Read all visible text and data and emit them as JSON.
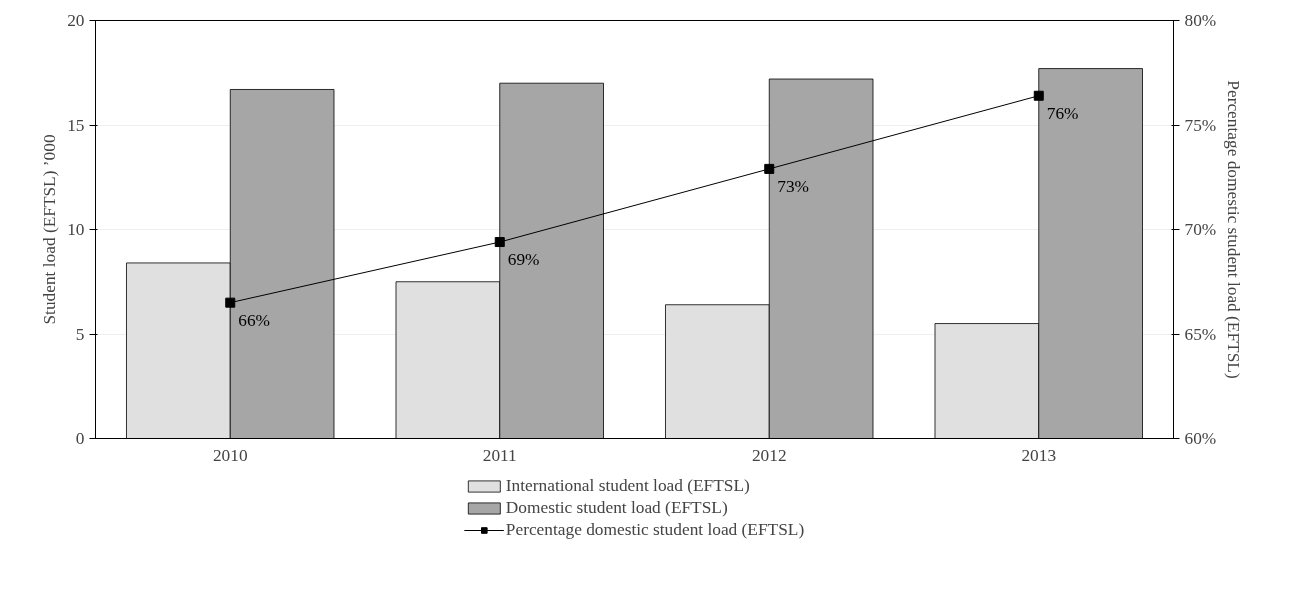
{
  "chart_data": {
    "type": "bar",
    "categories": [
      "2010",
      "2011",
      "2012",
      "2013"
    ],
    "ylabel": "Student load (EFTSL) ’000",
    "y2label": "Percentage domestic student load (EFTSL)",
    "ylim": [
      0,
      20
    ],
    "yticks": [
      0,
      5,
      10,
      15,
      20
    ],
    "y2lim": [
      60,
      80
    ],
    "y2ticks": [
      {
        "value": 60,
        "label": "60%"
      },
      {
        "value": 65,
        "label": "65%"
      },
      {
        "value": 70,
        "label": "70%"
      },
      {
        "value": 75,
        "label": "75%"
      },
      {
        "value": 80,
        "label": "80%"
      }
    ],
    "grid": "y",
    "legend": "bottom",
    "series": [
      {
        "name": "International student load (EFTSL)",
        "color": "#e0e0e0",
        "values": [
          8.4,
          7.5,
          6.4,
          5.5
        ]
      },
      {
        "name": "Domestic student load (EFTSL)",
        "color": "#a6a6a6",
        "values": [
          16.7,
          17.0,
          17.2,
          17.7
        ]
      },
      {
        "name": "Percentage domestic student load (EFTSL)",
        "type": "line",
        "axis": "y2",
        "color": "#000000",
        "marker": "square",
        "values": [
          66.5,
          69.4,
          72.9,
          76.4
        ],
        "value_labels": [
          "66%",
          "69%",
          "73%",
          "76%"
        ]
      }
    ]
  }
}
